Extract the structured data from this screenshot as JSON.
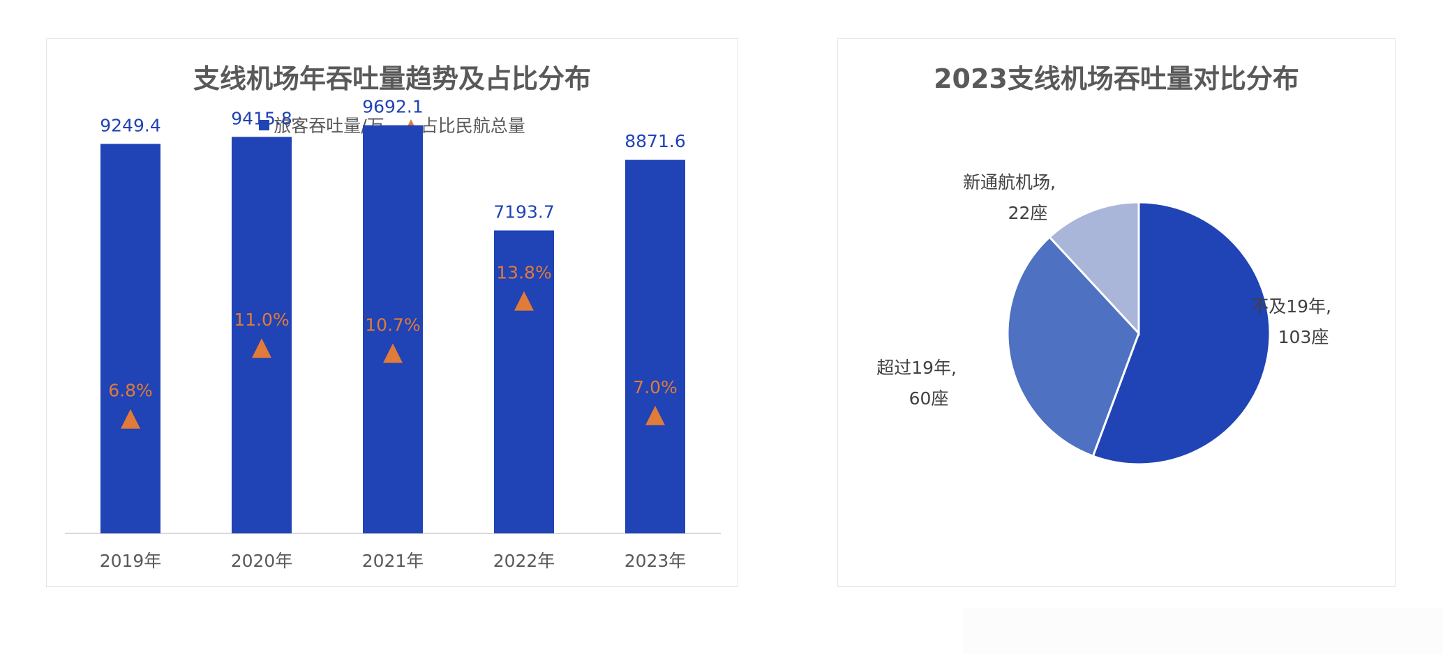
{
  "colors": {
    "bar": "#2043B5",
    "marker": "#E07B39",
    "axis_text": "#595959",
    "value_label": "#2043B5",
    "pct_label": "#E07B39",
    "pie": [
      "#2043B5",
      "#4E72C1",
      "#A9B5D9"
    ]
  },
  "chart_data": [
    {
      "type": "bar",
      "title": "支线机场年吞吐量趋势及占比分布",
      "categories": [
        "2019年",
        "2020年",
        "2021年",
        "2022年",
        "2023年"
      ],
      "series": [
        {
          "name": "旅客吞吐量/万",
          "type": "bar",
          "values": [
            9249.4,
            9415.8,
            9692.1,
            7193.7,
            8871.6
          ],
          "labels": [
            "9249.4",
            "9415.8",
            "9692.1",
            "7193.7",
            "8871.6"
          ]
        },
        {
          "name": "占比民航总量",
          "type": "scatter",
          "marker": "triangle",
          "values": [
            6.8,
            11.0,
            10.7,
            13.8,
            7.0
          ],
          "labels": [
            "6.8%",
            "11.0%",
            "10.7%",
            "13.8%",
            "7.0%"
          ]
        }
      ],
      "ylim": [
        0,
        10000
      ],
      "y2lim": [
        0,
        25
      ],
      "legend_position": "top-center",
      "grid": false
    },
    {
      "type": "pie",
      "title": "2023支线机场吞吐量对比分布",
      "slices": [
        {
          "label_line1": "不及19年,",
          "label_line2": "103座",
          "value": 103
        },
        {
          "label_line1": "超过19年,",
          "label_line2": "60座",
          "value": 60
        },
        {
          "label_line1": "新通航机场,",
          "label_line2": "22座",
          "value": 22
        }
      ]
    }
  ]
}
